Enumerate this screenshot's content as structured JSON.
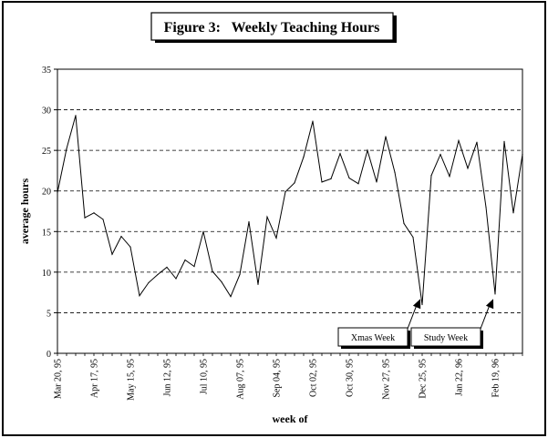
{
  "chart_data": {
    "type": "line",
    "title": "Figure 3:   Weekly Teaching Hours",
    "xlabel": "week of",
    "ylabel": "average hours",
    "ylim": [
      0,
      35
    ],
    "yticks": [
      0,
      5,
      10,
      15,
      20,
      25,
      30,
      35
    ],
    "grid": "horizontal dashed",
    "x_tick_labels": [
      {
        "week_index": 0,
        "label": "Mar 20, 95"
      },
      {
        "week_index": 4,
        "label": "Apr 17, 95"
      },
      {
        "week_index": 8,
        "label": "May 15, 95"
      },
      {
        "week_index": 12,
        "label": "Jun 12, 95"
      },
      {
        "week_index": 16,
        "label": "Jul 10, 95"
      },
      {
        "week_index": 20,
        "label": "Aug 07, 95"
      },
      {
        "week_index": 24,
        "label": "Sep 04, 95"
      },
      {
        "week_index": 28,
        "label": "Oct 02, 95"
      },
      {
        "week_index": 32,
        "label": "Oct 30, 95"
      },
      {
        "week_index": 36,
        "label": "Nov 27, 95"
      },
      {
        "week_index": 40,
        "label": "Dec 25, 95"
      },
      {
        "week_index": 44,
        "label": "Jan 22, 96"
      },
      {
        "week_index": 48,
        "label": "Feb 19, 96"
      }
    ],
    "series": [
      {
        "values": [
          19.8,
          25.2,
          29.3,
          16.7,
          17.3,
          16.5,
          12.2,
          14.4,
          13.1,
          7.1,
          8.7,
          9.7,
          10.6,
          9.2,
          11.5,
          10.7,
          15.0,
          10.1,
          8.8,
          7.0,
          9.7,
          16.2,
          8.5,
          16.8,
          14.2,
          19.9,
          21.0,
          24.2,
          28.6,
          21.1,
          21.5,
          24.6,
          21.6,
          20.9,
          25.0,
          21.1,
          26.7,
          22.3,
          16.0,
          14.3,
          6.0,
          21.9,
          24.5,
          21.8,
          26.2,
          22.8,
          26.0,
          18.0,
          7.3,
          26.1,
          17.3,
          24.5
        ]
      }
    ],
    "annotations": [
      {
        "text": "Xmas Week",
        "week_index": 40
      },
      {
        "text": "Study Week",
        "week_index": 48
      }
    ]
  }
}
